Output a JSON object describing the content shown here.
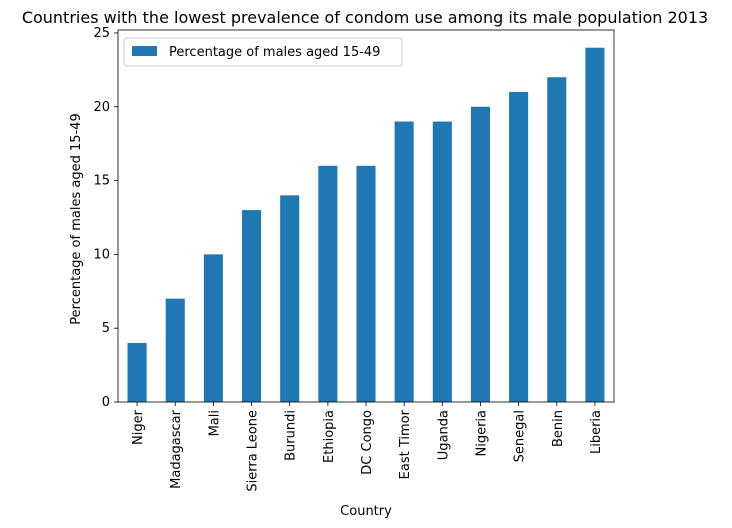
{
  "chart_data": {
    "type": "bar",
    "title": "Countries with the lowest prevalence of condom use among its male population 2013",
    "xlabel": "Country",
    "ylabel": "Percentage of males aged 15-49",
    "categories": [
      "Niger",
      "Madagascar",
      "Mali",
      "Sierra Leone",
      "Burundi",
      "Ethiopia",
      "DC Congo",
      "East Timor",
      "Uganda",
      "Nigeria",
      "Senegal",
      "Benin",
      "Liberia"
    ],
    "series": [
      {
        "name": "Percentage of males aged 15-49",
        "values": [
          4,
          7,
          10,
          13,
          14,
          16,
          16,
          19,
          19,
          20,
          21,
          22,
          24
        ],
        "color": "#1f77b4"
      }
    ],
    "ylim": [
      0,
      25.2
    ],
    "yticks": [
      0,
      5,
      10,
      15,
      20,
      25
    ],
    "grid": false,
    "legend_position": "top-left"
  }
}
